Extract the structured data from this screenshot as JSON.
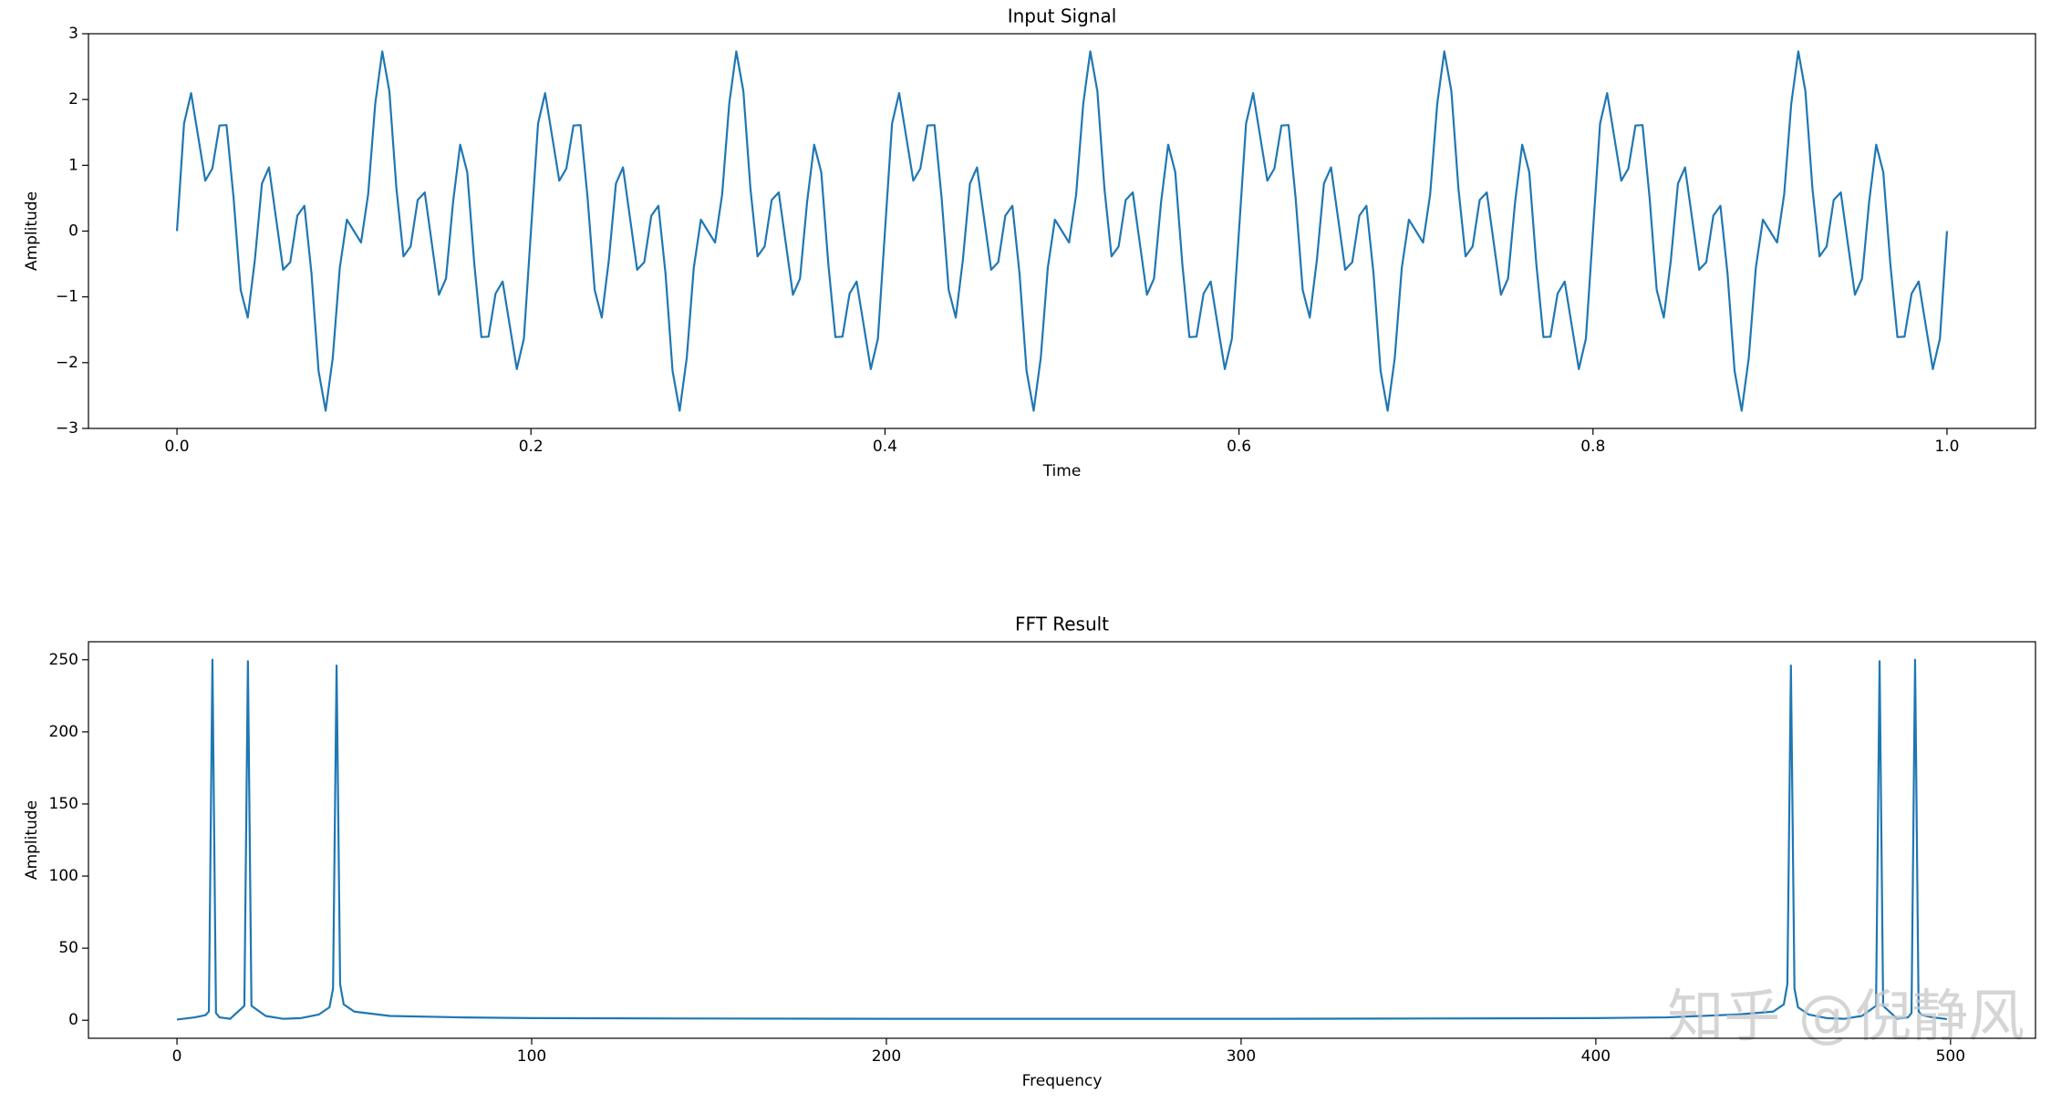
{
  "chart_data": [
    {
      "type": "line",
      "title": "Input Signal",
      "x_label": "Time",
      "y_label": "Amplitude",
      "color": "#1f77b4",
      "xlim": [
        -0.05,
        1.05
      ],
      "ylim": [
        -3,
        3
      ],
      "xticks": [
        {
          "value": 0,
          "label": "0.0"
        },
        0.2,
        0.4,
        0.6,
        0.8,
        {
          "value": 1,
          "label": "1.0"
        }
      ],
      "yticks": [
        {
          "value": -3,
          "label": "−3"
        },
        {
          "value": -2,
          "label": "−2"
        },
        {
          "value": -1,
          "label": "−1"
        },
        0,
        1,
        2,
        3
      ],
      "x": [
        0,
        0.004,
        0.008,
        0.012,
        0.016,
        0.02,
        0.024,
        0.028,
        0.032,
        0.036,
        0.04,
        0.044,
        0.048,
        0.052,
        0.056,
        0.06,
        0.064,
        0.068,
        0.072,
        0.076,
        0.08,
        0.084,
        0.088,
        0.092,
        0.096,
        0.1,
        0.104,
        0.108,
        0.112,
        0.116,
        0.12,
        0.124,
        0.128,
        0.132,
        0.136,
        0.14,
        0.144,
        0.148,
        0.152,
        0.156,
        0.16,
        0.164,
        0.168,
        0.172,
        0.176,
        0.18,
        0.184,
        0.188,
        0.192,
        0.196,
        0.2,
        0.204,
        0.208,
        0.212,
        0.216,
        0.22,
        0.224,
        0.228,
        0.232,
        0.236,
        0.24,
        0.244,
        0.248,
        0.252,
        0.256,
        0.26,
        0.264,
        0.268,
        0.272,
        0.276,
        0.28,
        0.284,
        0.288,
        0.292,
        0.296,
        0.3,
        0.304,
        0.308,
        0.312,
        0.316,
        0.32,
        0.324,
        0.328,
        0.332,
        0.336,
        0.34,
        0.344,
        0.348,
        0.352,
        0.356,
        0.36,
        0.364,
        0.368,
        0.372,
        0.376,
        0.38,
        0.384,
        0.388,
        0.392,
        0.396,
        0.4,
        0.404,
        0.408,
        0.412,
        0.416,
        0.42,
        0.424,
        0.428,
        0.432,
        0.436,
        0.44,
        0.444,
        0.448,
        0.452,
        0.456,
        0.46,
        0.464,
        0.468,
        0.472,
        0.476,
        0.48,
        0.484,
        0.488,
        0.492,
        0.496,
        0.5,
        0.504,
        0.508,
        0.512,
        0.516,
        0.52,
        0.524,
        0.528,
        0.532,
        0.536,
        0.54,
        0.544,
        0.548,
        0.552,
        0.556,
        0.56,
        0.564,
        0.568,
        0.572,
        0.576,
        0.58,
        0.584,
        0.588,
        0.592,
        0.596,
        0.6,
        0.604,
        0.608,
        0.612,
        0.616,
        0.62,
        0.624,
        0.628,
        0.632,
        0.636,
        0.64,
        0.644,
        0.648,
        0.652,
        0.656,
        0.66,
        0.664,
        0.668,
        0.672,
        0.676,
        0.68,
        0.684,
        0.688,
        0.692,
        0.696,
        0.7,
        0.704,
        0.708,
        0.712,
        0.716,
        0.72,
        0.724,
        0.728,
        0.732,
        0.736,
        0.74,
        0.744,
        0.748,
        0.752,
        0.756,
        0.76,
        0.764,
        0.768,
        0.772,
        0.776,
        0.78,
        0.784,
        0.788,
        0.792,
        0.796,
        0.8,
        0.804,
        0.808,
        0.812,
        0.816,
        0.82,
        0.824,
        0.828,
        0.832,
        0.836,
        0.84,
        0.844,
        0.848,
        0.852,
        0.856,
        0.86,
        0.864,
        0.868,
        0.872,
        0.876,
        0.88,
        0.884,
        0.888,
        0.892,
        0.896,
        0.9,
        0.904,
        0.908,
        0.912,
        0.916,
        0.92,
        0.924,
        0.928,
        0.932,
        0.936,
        0.94,
        0.944,
        0.948,
        0.952,
        0.956,
        0.96,
        0.964,
        0.968,
        0.972,
        0.976,
        0.98,
        0.984,
        0.988,
        0.992,
        0.996,
        1
      ],
      "values": [
        0,
        1.635,
        2.097,
        1.434,
        0.767,
        0.951,
        1.605,
        1.612,
        0.502,
        -0.896,
        -1.314,
        -0.442,
        0.721,
        0.968,
        0.191,
        -0.588,
        -0.473,
        0.234,
        0.384,
        -0.642,
        -2.127,
        -2.731,
        -1.931,
        -0.556,
        0.174,
        0,
        -0.174,
        0.556,
        1.931,
        2.731,
        2.127,
        0.642,
        -0.384,
        -0.234,
        0.473,
        0.588,
        -0.191,
        -0.968,
        -0.721,
        0.442,
        1.314,
        0.896,
        -0.502,
        -1.612,
        -1.605,
        -0.951,
        -0.767,
        -1.434,
        -2.097,
        -1.635,
        0,
        1.635,
        2.097,
        1.434,
        0.767,
        0.951,
        1.605,
        1.612,
        0.502,
        -0.896,
        -1.314,
        -0.442,
        0.721,
        0.968,
        0.191,
        -0.588,
        -0.473,
        0.234,
        0.384,
        -0.642,
        -2.127,
        -2.731,
        -1.931,
        -0.556,
        0.174,
        0,
        -0.174,
        0.556,
        1.931,
        2.731,
        2.127,
        0.642,
        -0.384,
        -0.234,
        0.473,
        0.588,
        -0.191,
        -0.968,
        -0.721,
        0.442,
        1.314,
        0.896,
        -0.502,
        -1.612,
        -1.605,
        -0.951,
        -0.767,
        -1.434,
        -2.097,
        -1.635,
        0,
        1.635,
        2.097,
        1.434,
        0.767,
        0.951,
        1.605,
        1.612,
        0.502,
        -0.896,
        -1.314,
        -0.442,
        0.721,
        0.968,
        0.191,
        -0.588,
        -0.473,
        0.234,
        0.384,
        -0.642,
        -2.127,
        -2.731,
        -1.931,
        -0.556,
        0.174,
        0,
        -0.174,
        0.556,
        1.931,
        2.731,
        2.127,
        0.642,
        -0.384,
        -0.234,
        0.473,
        0.588,
        -0.191,
        -0.968,
        -0.721,
        0.442,
        1.314,
        0.896,
        -0.502,
        -1.612,
        -1.605,
        -0.951,
        -0.767,
        -1.434,
        -2.097,
        -1.635,
        0,
        1.635,
        2.097,
        1.434,
        0.767,
        0.951,
        1.605,
        1.612,
        0.502,
        -0.896,
        -1.314,
        -0.442,
        0.721,
        0.968,
        0.191,
        -0.588,
        -0.473,
        0.234,
        0.384,
        -0.642,
        -2.127,
        -2.731,
        -1.931,
        -0.556,
        0.174,
        0,
        -0.174,
        0.556,
        1.931,
        2.731,
        2.127,
        0.642,
        -0.384,
        -0.234,
        0.473,
        0.588,
        -0.191,
        -0.968,
        -0.721,
        0.442,
        1.314,
        0.896,
        -0.502,
        -1.612,
        -1.605,
        -0.951,
        -0.767,
        -1.434,
        -2.097,
        -1.635,
        0,
        1.635,
        2.097,
        1.434,
        0.767,
        0.951,
        1.605,
        1.612,
        0.502,
        -0.896,
        -1.314,
        -0.442,
        0.721,
        0.968,
        0.191,
        -0.588,
        -0.473,
        0.234,
        0.384,
        -0.642,
        -2.127,
        -2.731,
        -1.931,
        -0.556,
        0.174,
        0,
        -0.174,
        0.556,
        1.931,
        2.731,
        2.127,
        0.642,
        -0.384,
        -0.234,
        0.473,
        0.588,
        -0.191,
        -0.968,
        -0.721,
        0.442,
        1.314,
        0.896,
        -0.502,
        -1.612,
        -1.605,
        -0.951,
        -0.767,
        -1.434,
        -2.097,
        -1.635,
        0
      ]
    },
    {
      "type": "line",
      "title": "FFT Result",
      "x_label": "Frequency",
      "y_label": "Amplitude",
      "color": "#1f77b4",
      "xlim": [
        -24.95,
        523.95
      ],
      "ylim": [
        -12.5,
        262.5
      ],
      "xticks": [
        0,
        100,
        200,
        300,
        400,
        500
      ],
      "yticks": [
        0,
        50,
        100,
        150,
        200,
        250
      ],
      "x": [
        0,
        5,
        8,
        9,
        10,
        11,
        12,
        15,
        19,
        20,
        21,
        25,
        30,
        35,
        40,
        43,
        44,
        45,
        46,
        47,
        50,
        60,
        80,
        100,
        150,
        200,
        250,
        300,
        350,
        400,
        420,
        440,
        450,
        453,
        454,
        455,
        456,
        457,
        460,
        465,
        470,
        475,
        479,
        480,
        481,
        485,
        488,
        489,
        490,
        491,
        492,
        495,
        499
      ],
      "values": [
        0.5,
        2,
        3.5,
        6,
        250,
        5,
        2,
        1,
        10,
        249,
        10,
        3,
        1,
        1.5,
        4,
        9,
        22,
        246,
        25,
        11,
        6,
        3,
        2,
        1.5,
        1.2,
        1,
        1,
        1,
        1.2,
        1.5,
        2,
        4,
        6,
        11,
        25,
        246,
        22,
        9,
        4,
        1.5,
        1,
        3,
        10,
        249,
        10,
        1,
        2,
        5,
        250,
        6,
        3.5,
        2,
        0.8
      ],
      "watermark": "知乎 @倪静风"
    }
  ]
}
